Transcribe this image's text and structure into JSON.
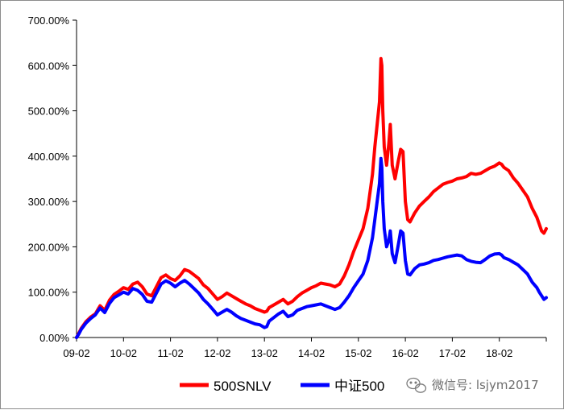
{
  "chart_data": {
    "type": "line",
    "title": "",
    "xlabel": "",
    "ylabel": "",
    "x_ticks": [
      "09-02",
      "10-02",
      "11-02",
      "12-02",
      "13-02",
      "14-02",
      "15-02",
      "16-02",
      "17-02",
      "18-02"
    ],
    "x_range": [
      2009.0,
      2019.0
    ],
    "y_ticks": [
      "0.00%",
      "100.00%",
      "200.00%",
      "300.00%",
      "400.00%",
      "500.00%",
      "600.00%",
      "700.00%"
    ],
    "ylim": [
      0,
      700
    ],
    "y_unit": "%",
    "grid": false,
    "legend_position": "bottom-center",
    "series": [
      {
        "name": "500SNLV",
        "color": "#ff0000",
        "points": [
          [
            2009.0,
            0
          ],
          [
            2009.05,
            10
          ],
          [
            2009.1,
            20
          ],
          [
            2009.2,
            35
          ],
          [
            2009.3,
            45
          ],
          [
            2009.4,
            52
          ],
          [
            2009.5,
            70
          ],
          [
            2009.6,
            60
          ],
          [
            2009.7,
            82
          ],
          [
            2009.8,
            95
          ],
          [
            2009.9,
            102
          ],
          [
            2010.0,
            110
          ],
          [
            2010.1,
            106
          ],
          [
            2010.2,
            118
          ],
          [
            2010.3,
            122
          ],
          [
            2010.4,
            112
          ],
          [
            2010.5,
            96
          ],
          [
            2010.6,
            92
          ],
          [
            2010.7,
            112
          ],
          [
            2010.8,
            132
          ],
          [
            2010.9,
            138
          ],
          [
            2011.0,
            130
          ],
          [
            2011.1,
            126
          ],
          [
            2011.2,
            136
          ],
          [
            2011.3,
            150
          ],
          [
            2011.4,
            146
          ],
          [
            2011.5,
            138
          ],
          [
            2011.6,
            130
          ],
          [
            2011.7,
            116
          ],
          [
            2011.8,
            108
          ],
          [
            2011.9,
            96
          ],
          [
            2012.0,
            84
          ],
          [
            2012.1,
            90
          ],
          [
            2012.2,
            98
          ],
          [
            2012.3,
            92
          ],
          [
            2012.4,
            86
          ],
          [
            2012.5,
            80
          ],
          [
            2012.6,
            74
          ],
          [
            2012.7,
            70
          ],
          [
            2012.8,
            64
          ],
          [
            2012.9,
            60
          ],
          [
            2013.0,
            56
          ],
          [
            2013.05,
            58
          ],
          [
            2013.1,
            66
          ],
          [
            2013.2,
            72
          ],
          [
            2013.3,
            78
          ],
          [
            2013.4,
            84
          ],
          [
            2013.5,
            74
          ],
          [
            2013.6,
            80
          ],
          [
            2013.7,
            90
          ],
          [
            2013.8,
            98
          ],
          [
            2013.9,
            104
          ],
          [
            2014.0,
            110
          ],
          [
            2014.1,
            114
          ],
          [
            2014.2,
            120
          ],
          [
            2014.3,
            118
          ],
          [
            2014.4,
            116
          ],
          [
            2014.5,
            112
          ],
          [
            2014.6,
            118
          ],
          [
            2014.7,
            136
          ],
          [
            2014.8,
            160
          ],
          [
            2014.9,
            190
          ],
          [
            2015.0,
            215
          ],
          [
            2015.1,
            240
          ],
          [
            2015.2,
            285
          ],
          [
            2015.3,
            360
          ],
          [
            2015.35,
            420
          ],
          [
            2015.4,
            470
          ],
          [
            2015.45,
            520
          ],
          [
            2015.48,
            615
          ],
          [
            2015.5,
            600
          ],
          [
            2015.52,
            500
          ],
          [
            2015.55,
            420
          ],
          [
            2015.6,
            380
          ],
          [
            2015.65,
            430
          ],
          [
            2015.68,
            470
          ],
          [
            2015.72,
            380
          ],
          [
            2015.78,
            350
          ],
          [
            2015.85,
            390
          ],
          [
            2015.9,
            415
          ],
          [
            2015.95,
            410
          ],
          [
            2016.0,
            300
          ],
          [
            2016.05,
            260
          ],
          [
            2016.1,
            255
          ],
          [
            2016.2,
            275
          ],
          [
            2016.3,
            290
          ],
          [
            2016.4,
            300
          ],
          [
            2016.5,
            310
          ],
          [
            2016.6,
            322
          ],
          [
            2016.7,
            330
          ],
          [
            2016.8,
            338
          ],
          [
            2016.9,
            342
          ],
          [
            2017.0,
            345
          ],
          [
            2017.1,
            350
          ],
          [
            2017.2,
            352
          ],
          [
            2017.3,
            355
          ],
          [
            2017.4,
            362
          ],
          [
            2017.5,
            360
          ],
          [
            2017.6,
            362
          ],
          [
            2017.7,
            368
          ],
          [
            2017.8,
            374
          ],
          [
            2017.9,
            378
          ],
          [
            2018.0,
            385
          ],
          [
            2018.05,
            382
          ],
          [
            2018.1,
            375
          ],
          [
            2018.2,
            368
          ],
          [
            2018.3,
            352
          ],
          [
            2018.4,
            340
          ],
          [
            2018.5,
            325
          ],
          [
            2018.6,
            310
          ],
          [
            2018.7,
            285
          ],
          [
            2018.8,
            265
          ],
          [
            2018.85,
            250
          ],
          [
            2018.9,
            235
          ],
          [
            2018.95,
            230
          ],
          [
            2019.0,
            240
          ]
        ]
      },
      {
        "name": "中证500",
        "color": "#0000ff",
        "points": [
          [
            2009.0,
            0
          ],
          [
            2009.05,
            8
          ],
          [
            2009.1,
            18
          ],
          [
            2009.2,
            32
          ],
          [
            2009.3,
            42
          ],
          [
            2009.4,
            50
          ],
          [
            2009.5,
            65
          ],
          [
            2009.6,
            55
          ],
          [
            2009.7,
            75
          ],
          [
            2009.8,
            88
          ],
          [
            2009.9,
            94
          ],
          [
            2010.0,
            100
          ],
          [
            2010.1,
            96
          ],
          [
            2010.2,
            108
          ],
          [
            2010.3,
            104
          ],
          [
            2010.4,
            95
          ],
          [
            2010.5,
            80
          ],
          [
            2010.6,
            78
          ],
          [
            2010.7,
            98
          ],
          [
            2010.8,
            118
          ],
          [
            2010.9,
            125
          ],
          [
            2011.0,
            120
          ],
          [
            2011.1,
            112
          ],
          [
            2011.2,
            120
          ],
          [
            2011.3,
            126
          ],
          [
            2011.4,
            118
          ],
          [
            2011.5,
            108
          ],
          [
            2011.6,
            98
          ],
          [
            2011.7,
            84
          ],
          [
            2011.8,
            74
          ],
          [
            2011.9,
            62
          ],
          [
            2012.0,
            50
          ],
          [
            2012.1,
            56
          ],
          [
            2012.2,
            62
          ],
          [
            2012.3,
            56
          ],
          [
            2012.4,
            48
          ],
          [
            2012.5,
            42
          ],
          [
            2012.6,
            38
          ],
          [
            2012.7,
            34
          ],
          [
            2012.8,
            30
          ],
          [
            2012.9,
            28
          ],
          [
            2013.0,
            22
          ],
          [
            2013.05,
            24
          ],
          [
            2013.1,
            36
          ],
          [
            2013.2,
            44
          ],
          [
            2013.3,
            52
          ],
          [
            2013.4,
            58
          ],
          [
            2013.5,
            46
          ],
          [
            2013.6,
            50
          ],
          [
            2013.7,
            60
          ],
          [
            2013.8,
            64
          ],
          [
            2013.9,
            68
          ],
          [
            2014.0,
            70
          ],
          [
            2014.1,
            72
          ],
          [
            2014.2,
            74
          ],
          [
            2014.3,
            70
          ],
          [
            2014.4,
            66
          ],
          [
            2014.5,
            62
          ],
          [
            2014.6,
            66
          ],
          [
            2014.7,
            78
          ],
          [
            2014.8,
            92
          ],
          [
            2014.9,
            110
          ],
          [
            2015.0,
            125
          ],
          [
            2015.1,
            140
          ],
          [
            2015.2,
            170
          ],
          [
            2015.3,
            220
          ],
          [
            2015.35,
            260
          ],
          [
            2015.4,
            300
          ],
          [
            2015.45,
            340
          ],
          [
            2015.48,
            395
          ],
          [
            2015.5,
            375
          ],
          [
            2015.52,
            300
          ],
          [
            2015.55,
            240
          ],
          [
            2015.6,
            200
          ],
          [
            2015.65,
            215
          ],
          [
            2015.68,
            235
          ],
          [
            2015.72,
            185
          ],
          [
            2015.78,
            165
          ],
          [
            2015.85,
            205
          ],
          [
            2015.9,
            235
          ],
          [
            2015.95,
            230
          ],
          [
            2016.0,
            170
          ],
          [
            2016.05,
            140
          ],
          [
            2016.1,
            138
          ],
          [
            2016.2,
            152
          ],
          [
            2016.3,
            160
          ],
          [
            2016.4,
            162
          ],
          [
            2016.5,
            165
          ],
          [
            2016.6,
            170
          ],
          [
            2016.7,
            172
          ],
          [
            2016.8,
            175
          ],
          [
            2016.9,
            178
          ],
          [
            2017.0,
            180
          ],
          [
            2017.1,
            182
          ],
          [
            2017.2,
            180
          ],
          [
            2017.3,
            172
          ],
          [
            2017.4,
            168
          ],
          [
            2017.5,
            166
          ],
          [
            2017.6,
            165
          ],
          [
            2017.7,
            172
          ],
          [
            2017.8,
            180
          ],
          [
            2017.9,
            184
          ],
          [
            2018.0,
            185
          ],
          [
            2018.05,
            182
          ],
          [
            2018.1,
            176
          ],
          [
            2018.2,
            172
          ],
          [
            2018.3,
            166
          ],
          [
            2018.4,
            160
          ],
          [
            2018.5,
            150
          ],
          [
            2018.6,
            140
          ],
          [
            2018.7,
            122
          ],
          [
            2018.8,
            110
          ],
          [
            2018.85,
            100
          ],
          [
            2018.9,
            92
          ],
          [
            2018.95,
            84
          ],
          [
            2019.0,
            88
          ]
        ]
      }
    ]
  },
  "watermark": {
    "icon": "wechat-icon",
    "text": "微信号: lsjym2017"
  }
}
